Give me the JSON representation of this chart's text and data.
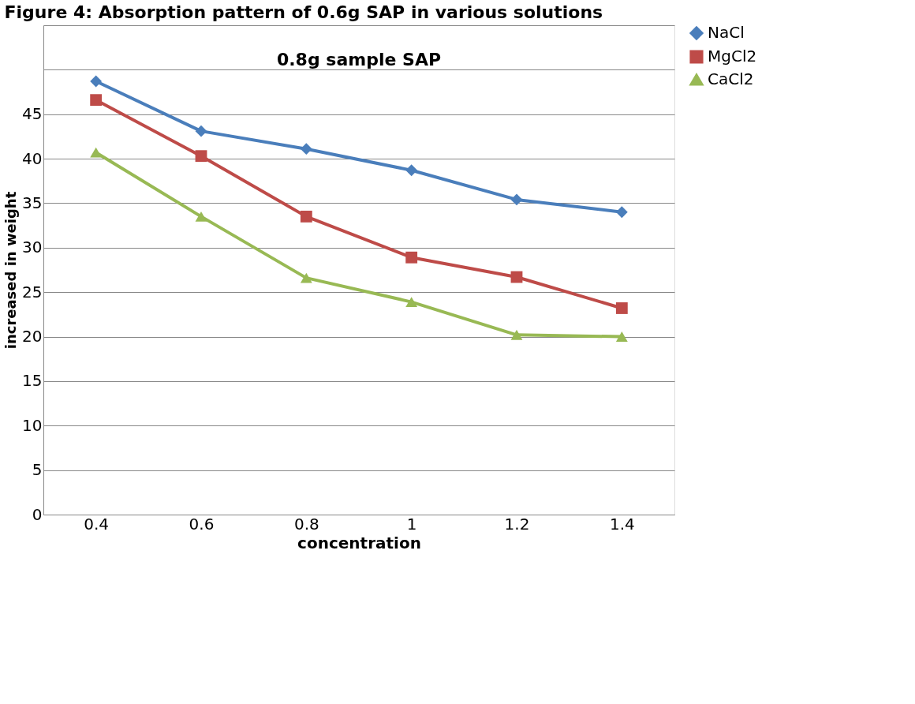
{
  "chart_data": {
    "type": "line",
    "title": "Figure 4: Absorption pattern of 0.6g SAP in various solutions",
    "subtitle": "0.8g sample SAP",
    "xlabel": "concentration",
    "ylabel": "increased in weight",
    "categories": [
      "0.4",
      "0.6",
      "0.8",
      "1",
      "1.2",
      "1.4"
    ],
    "series": [
      {
        "name": "NaCl",
        "color": "#4a7ebb",
        "marker": "diamond",
        "values": [
          48.7,
          43.1,
          41.1,
          38.7,
          35.4,
          34.0
        ]
      },
      {
        "name": "MgCl2",
        "color": "#be4b48",
        "marker": "square",
        "values": [
          46.6,
          40.3,
          33.5,
          28.9,
          26.7,
          23.2
        ]
      },
      {
        "name": "CaCl2",
        "color": "#98b954",
        "marker": "triangle",
        "values": [
          40.7,
          33.5,
          26.6,
          23.9,
          20.2,
          20.0
        ]
      }
    ],
    "ylim": [
      0,
      55
    ],
    "yticks": [
      0,
      5,
      10,
      15,
      20,
      25,
      30,
      35,
      40,
      45,
      {
        "value": 50,
        "label": null
      },
      {
        "value": 55,
        "label": null
      }
    ],
    "grid": "y",
    "legend": "right",
    "line_style": "solid"
  }
}
